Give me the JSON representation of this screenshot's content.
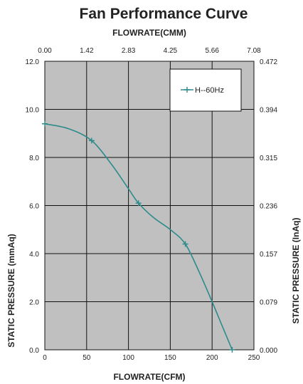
{
  "chart_data": {
    "type": "line",
    "title": "Fan Performance Curve",
    "xlabel": "FLOWRATE(CFM)",
    "x2label": "FLOWRATE(CMM)",
    "ylabel": "STATIC PRESSURE (mmAq)",
    "y2label": "STATIC PRESSURE (InAq)",
    "xlim": [
      0,
      250
    ],
    "ylim": [
      0,
      12
    ],
    "x_ticks": [
      "0",
      "50",
      "100",
      "150",
      "200",
      "250"
    ],
    "x2_ticks": [
      "0.00",
      "1.42",
      "2.83",
      "4.25",
      "5.66",
      "7.08"
    ],
    "y_ticks": [
      "0.0",
      "2.0",
      "4.0",
      "6.0",
      "8.0",
      "10.0",
      "12.0"
    ],
    "y2_ticks": [
      "0.000",
      "0.079",
      "0.157",
      "0.236",
      "0.315",
      "0.394",
      "0.472"
    ],
    "grid": true,
    "background": "#c0c0c0",
    "legend_position": "top-right",
    "series": [
      {
        "name": "H--60Hz",
        "color": "#2e8b8b",
        "markers": [
          {
            "x": 0,
            "y": 9.4
          },
          {
            "x": 56,
            "y": 8.7
          },
          {
            "x": 112,
            "y": 6.1
          },
          {
            "x": 168,
            "y": 4.4
          },
          {
            "x": 224,
            "y": 0.0
          }
        ],
        "curve": [
          {
            "x": 0,
            "y": 9.4
          },
          {
            "x": 28,
            "y": 9.2
          },
          {
            "x": 56,
            "y": 8.7
          },
          {
            "x": 80,
            "y": 7.7
          },
          {
            "x": 100,
            "y": 6.7
          },
          {
            "x": 112,
            "y": 6.1
          },
          {
            "x": 130,
            "y": 5.5
          },
          {
            "x": 150,
            "y": 5.0
          },
          {
            "x": 168,
            "y": 4.4
          },
          {
            "x": 185,
            "y": 3.2
          },
          {
            "x": 200,
            "y": 2.0
          },
          {
            "x": 212,
            "y": 1.0
          },
          {
            "x": 224,
            "y": 0.0
          }
        ]
      }
    ]
  }
}
